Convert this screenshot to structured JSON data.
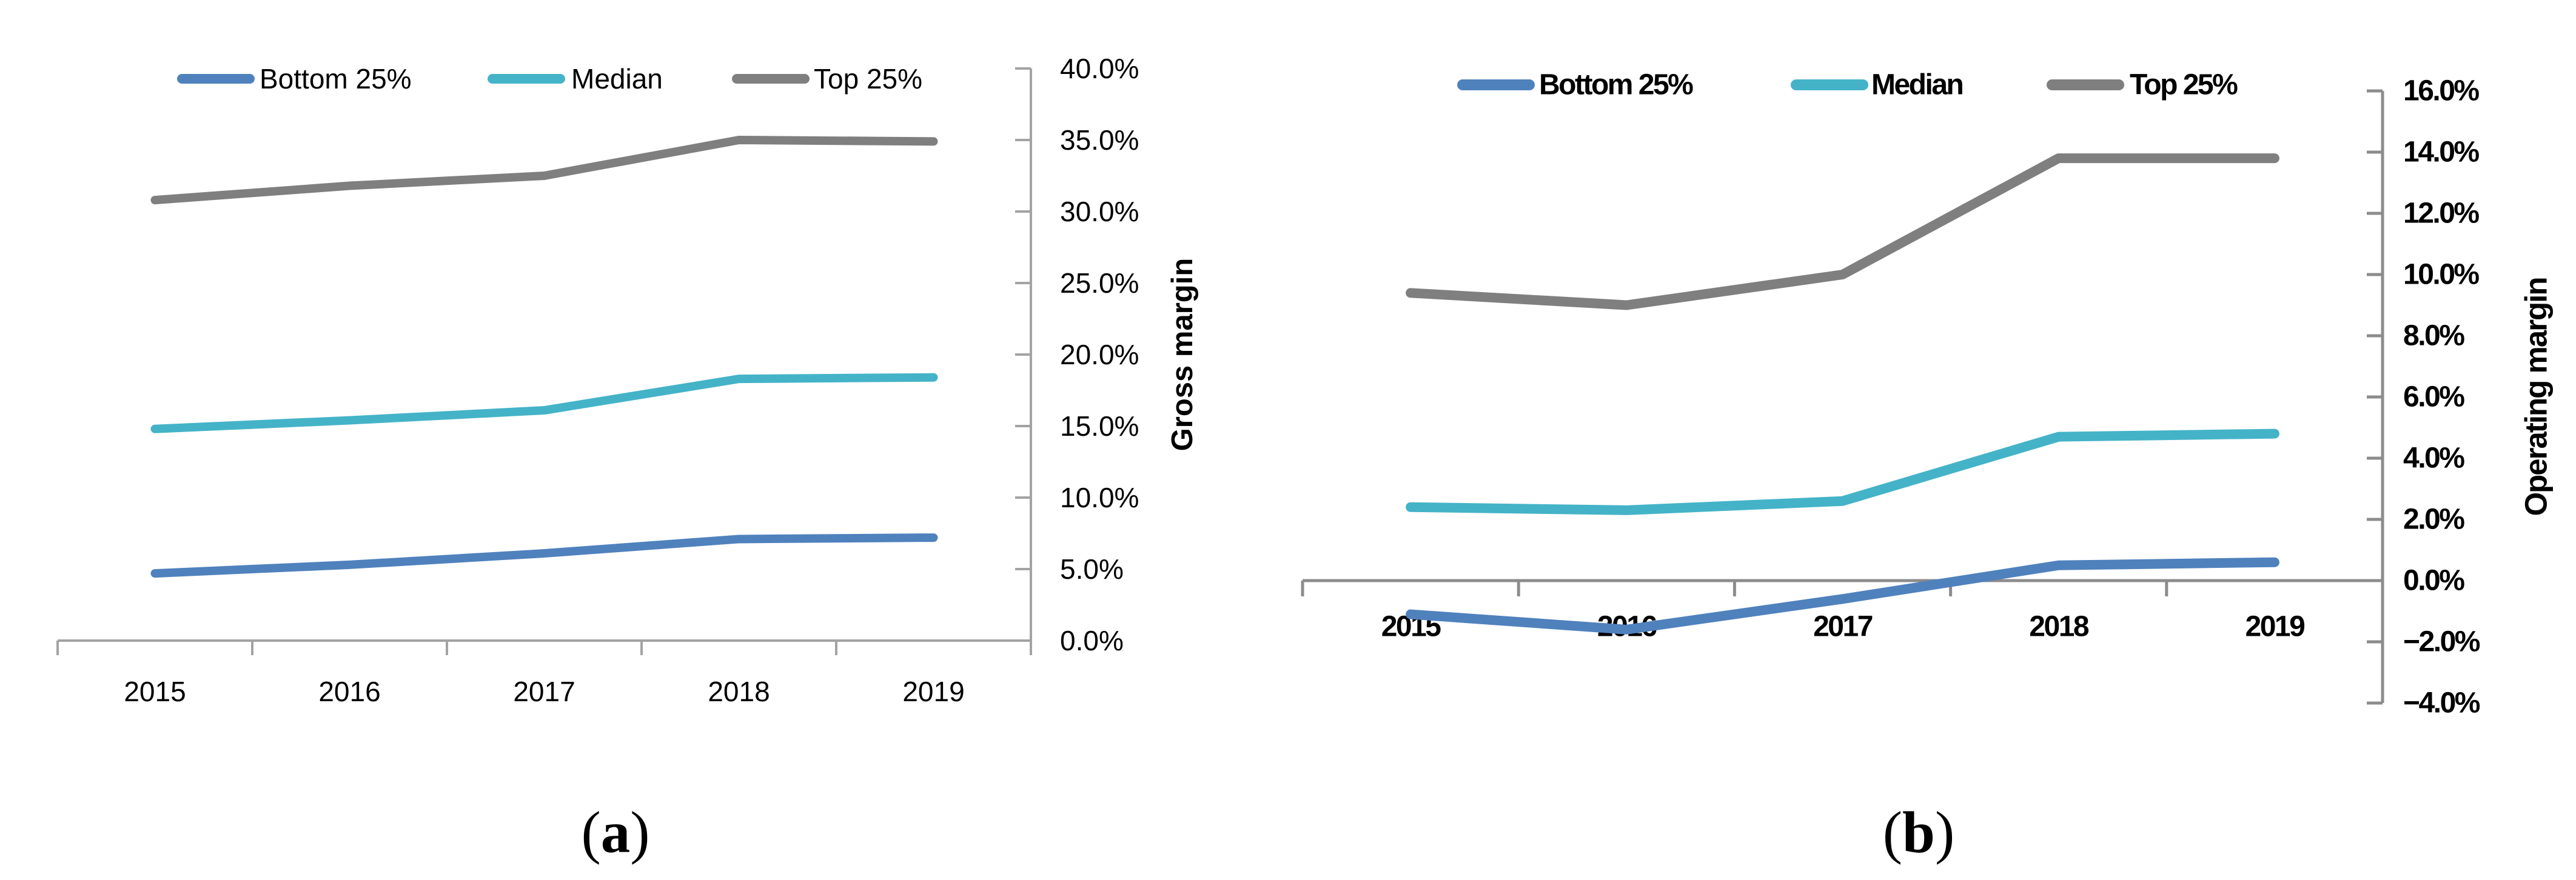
{
  "colors": {
    "bottom25": "#4f81bd",
    "median": "#44b3c8",
    "top25": "#7f7f7f",
    "axis_a": "#a3a3a3",
    "axis_b": "#8c8c8c",
    "text": "#000000"
  },
  "captions": {
    "a": {
      "open": "(",
      "letter": "a",
      "close": ")"
    },
    "b": {
      "open": "(",
      "letter": "b",
      "close": ")"
    }
  },
  "chart_data": [
    {
      "id": "a",
      "type": "line",
      "title": "",
      "xlabel": "",
      "ylabel": "Gross margin",
      "legend_position": "top",
      "grid": false,
      "categories": [
        "2015",
        "2016",
        "2017",
        "2018",
        "2019"
      ],
      "ylim": [
        0,
        40
      ],
      "ytick_step": 5,
      "ytick_labels": [
        "40.0%",
        "35.0%",
        "30.0%",
        "25.0%",
        "20.0%",
        "15.0%",
        "10.0%",
        "5.0%",
        "0.0%"
      ],
      "series": [
        {
          "name": "Bottom 25%",
          "color": "#4f81bd",
          "values": [
            4.7,
            5.3,
            6.1,
            7.1,
            7.2
          ]
        },
        {
          "name": "Median",
          "color": "#44b3c8",
          "values": [
            14.8,
            15.4,
            16.1,
            18.3,
            18.4
          ]
        },
        {
          "name": "Top 25%",
          "color": "#7f7f7f",
          "values": [
            30.8,
            31.8,
            32.5,
            35.0,
            34.9
          ]
        }
      ]
    },
    {
      "id": "b",
      "type": "line",
      "title": "",
      "xlabel": "",
      "ylabel": "Operating margin",
      "legend_position": "top",
      "grid": false,
      "categories": [
        "2015",
        "2016",
        "2017",
        "2018",
        "2019"
      ],
      "ylim": [
        -4,
        16
      ],
      "ytick_step": 2,
      "ytick_labels": [
        "16.0%",
        "14.0%",
        "12.0%",
        "10.0%",
        "8.0%",
        "6.0%",
        "4.0%",
        "2.0%",
        "0.0%",
        "−2.0%",
        "−4.0%"
      ],
      "series": [
        {
          "name": "Bottom 25%",
          "color": "#4f81bd",
          "values": [
            -1.1,
            -1.6,
            -0.6,
            0.5,
            0.6
          ]
        },
        {
          "name": "Median",
          "color": "#44b3c8",
          "values": [
            2.4,
            2.3,
            2.6,
            4.7,
            4.8
          ]
        },
        {
          "name": "Top 25%",
          "color": "#7f7f7f",
          "values": [
            9.4,
            9.0,
            10.0,
            13.8,
            13.8
          ]
        }
      ]
    }
  ]
}
